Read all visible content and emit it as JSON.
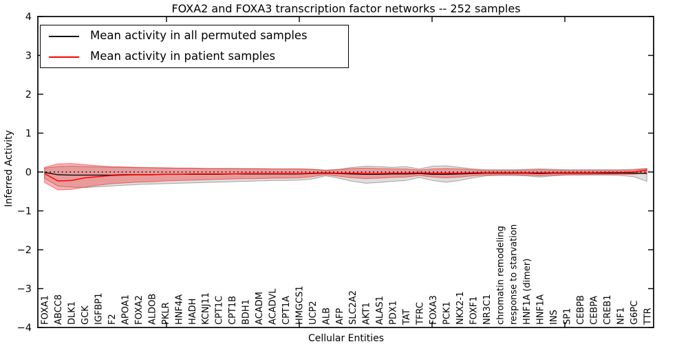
{
  "chart_data": {
    "type": "line",
    "title": "FOXA2 and FOXA3 transcription factor networks -- 252 samples",
    "xlabel": "Cellular Entities",
    "ylabel": "Inferred Activity",
    "ylim": [
      -4,
      4
    ],
    "ytick_labels": [
      "4",
      "3",
      "2",
      "1",
      "0",
      "−1",
      "−2",
      "−3",
      "−4"
    ],
    "grid": false,
    "legend_position": "upper left",
    "legend": [
      {
        "label": "Mean activity in all permuted samples",
        "color": "#000000"
      },
      {
        "label": "Mean activity in patient samples",
        "color": "#ff0000"
      }
    ],
    "categories": [
      "FOXA1",
      "ABCC8",
      "DLK1",
      "GCK",
      "IGFBP1",
      "F2",
      "APOA1",
      "FOXA2",
      "ALDOB",
      "PKLR",
      "HNF4A",
      "HADH",
      "KCNJ11",
      "CPT1C",
      "CPT1B",
      "BDH1",
      "ACADM",
      "ACADVL",
      "CPT1A",
      "HMGCS1",
      "UCP2",
      "ALB",
      "AFP",
      "SLC2A2",
      "AKT1",
      "ALAS1",
      "PDX1",
      "TAT",
      "TFRC",
      "FOXA3",
      "PCK1",
      "NKX2-1",
      "FOXF1",
      "NR3C1",
      "chromatin remodeling",
      "response to starvation",
      "HNF1A (dimer)",
      "HNF1A",
      "INS",
      "SP1",
      "CEBPB",
      "CEBPA",
      "CREB1",
      "NF1",
      "G6PC",
      "TTR"
    ],
    "series": [
      {
        "name": "Mean activity in all permuted samples",
        "color": "#000000",
        "values": [
          -0.01,
          -0.07,
          -0.08,
          -0.08,
          -0.08,
          -0.08,
          -0.07,
          -0.07,
          -0.07,
          -0.06,
          -0.06,
          -0.06,
          -0.06,
          -0.06,
          -0.05,
          -0.05,
          -0.05,
          -0.05,
          -0.05,
          -0.05,
          -0.04,
          -0.03,
          -0.04,
          -0.05,
          -0.06,
          -0.06,
          -0.05,
          -0.05,
          -0.04,
          -0.06,
          -0.06,
          -0.05,
          -0.04,
          -0.03,
          -0.03,
          -0.03,
          -0.03,
          -0.04,
          -0.03,
          -0.03,
          -0.03,
          -0.03,
          -0.03,
          -0.03,
          -0.03,
          -0.04
        ]
      },
      {
        "name": "Mean activity in patient samples",
        "color": "#ff0000",
        "values": [
          -0.04,
          -0.23,
          -0.22,
          -0.15,
          -0.12,
          -0.09,
          -0.08,
          -0.07,
          -0.07,
          -0.06,
          -0.06,
          -0.05,
          -0.05,
          -0.05,
          -0.05,
          -0.04,
          -0.04,
          -0.04,
          -0.04,
          -0.04,
          -0.03,
          -0.02,
          -0.03,
          -0.03,
          -0.04,
          -0.04,
          -0.03,
          -0.03,
          -0.02,
          -0.03,
          -0.03,
          -0.03,
          -0.02,
          -0.02,
          -0.02,
          -0.02,
          -0.02,
          -0.02,
          -0.02,
          -0.02,
          -0.02,
          -0.02,
          -0.01,
          -0.01,
          0.0,
          0.05
        ]
      }
    ],
    "bands": [
      {
        "name": "permuted-std-band",
        "color": "#000000",
        "opacity": 0.13,
        "upper": [
          0.1,
          0.14,
          0.15,
          0.14,
          0.13,
          0.12,
          0.12,
          0.11,
          0.11,
          0.1,
          0.1,
          0.1,
          0.09,
          0.09,
          0.09,
          0.09,
          0.09,
          0.08,
          0.08,
          0.08,
          0.07,
          0.05,
          0.07,
          0.12,
          0.15,
          0.14,
          0.12,
          0.14,
          0.08,
          0.15,
          0.16,
          0.12,
          0.08,
          0.06,
          0.06,
          0.06,
          0.07,
          0.08,
          0.07,
          0.06,
          0.06,
          0.06,
          0.06,
          0.06,
          0.07,
          0.09
        ],
        "lower": [
          -0.16,
          -0.36,
          -0.39,
          -0.4,
          -0.38,
          -0.36,
          -0.34,
          -0.32,
          -0.31,
          -0.3,
          -0.29,
          -0.28,
          -0.27,
          -0.26,
          -0.25,
          -0.24,
          -0.23,
          -0.22,
          -0.22,
          -0.21,
          -0.18,
          -0.1,
          -0.16,
          -0.24,
          -0.29,
          -0.27,
          -0.24,
          -0.22,
          -0.14,
          -0.22,
          -0.26,
          -0.22,
          -0.15,
          -0.1,
          -0.09,
          -0.09,
          -0.1,
          -0.13,
          -0.1,
          -0.08,
          -0.08,
          -0.08,
          -0.08,
          -0.09,
          -0.12,
          -0.24
        ]
      },
      {
        "name": "patient-std-band",
        "color": "#ff0000",
        "opacity": 0.3,
        "upper": [
          0.12,
          0.21,
          0.22,
          0.19,
          0.16,
          0.14,
          0.13,
          0.12,
          0.11,
          0.11,
          0.1,
          0.1,
          0.09,
          0.09,
          0.09,
          0.08,
          0.08,
          0.08,
          0.08,
          0.08,
          0.07,
          0.04,
          0.06,
          0.09,
          0.1,
          0.09,
          0.08,
          0.08,
          0.05,
          0.08,
          0.09,
          0.08,
          0.06,
          0.04,
          0.04,
          0.04,
          0.05,
          0.06,
          0.05,
          0.04,
          0.04,
          0.04,
          0.04,
          0.04,
          0.05,
          0.09
        ],
        "lower": [
          -0.27,
          -0.46,
          -0.45,
          -0.39,
          -0.34,
          -0.3,
          -0.28,
          -0.26,
          -0.25,
          -0.23,
          -0.22,
          -0.21,
          -0.2,
          -0.19,
          -0.18,
          -0.17,
          -0.17,
          -0.16,
          -0.16,
          -0.15,
          -0.12,
          -0.07,
          -0.11,
          -0.15,
          -0.17,
          -0.16,
          -0.14,
          -0.13,
          -0.09,
          -0.13,
          -0.15,
          -0.13,
          -0.1,
          -0.08,
          -0.07,
          -0.07,
          -0.08,
          -0.1,
          -0.08,
          -0.07,
          -0.07,
          -0.06,
          -0.06,
          -0.06,
          -0.06,
          -0.02
        ]
      }
    ],
    "zero_line": {
      "value": 0,
      "style": "dotted",
      "color": "#000000"
    }
  }
}
